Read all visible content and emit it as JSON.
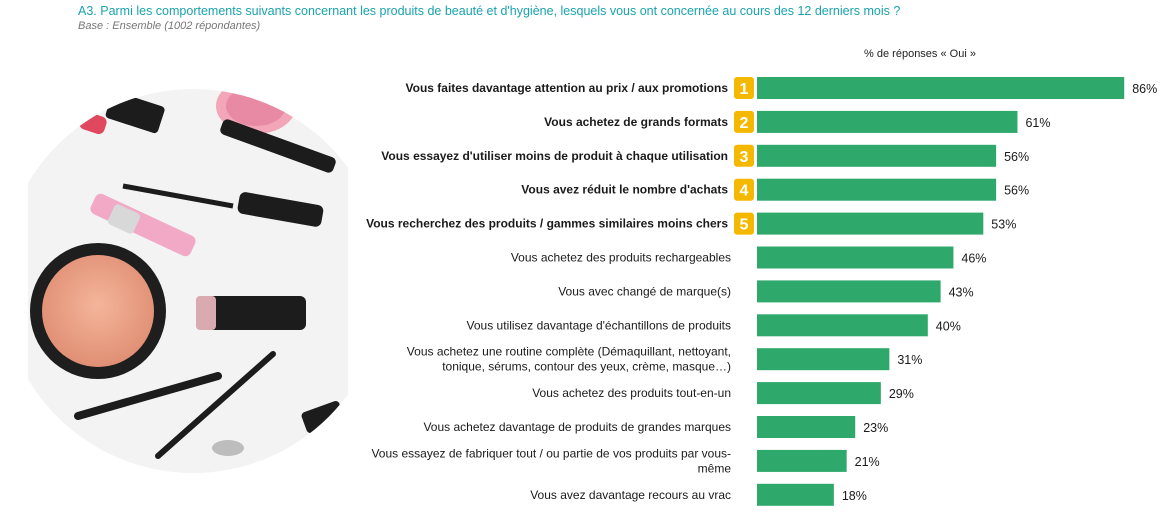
{
  "header": {
    "title": "A3. Parmi les comportements suivants concernant les produits de beauté et d'hygiène, lesquels vous ont concernée au cours des 12 derniers mois ?",
    "subtitle": "Base : Ensemble (1002 répondantes)",
    "measure_label": "% de réponses « Oui »"
  },
  "colors": {
    "bar": "#2ea86b",
    "rank_badge": "#f5b800",
    "title": "#1aa3ad"
  },
  "photo": {
    "description_icon": "makeup-products-photo"
  },
  "chart_data": {
    "type": "bar",
    "orientation": "horizontal",
    "title": "A3. Parmi les comportements suivants concernant les produits de beauté et d'hygiène, lesquels vous ont concernée au cours des 12 derniers mois ?",
    "value_unit": "%",
    "xlim": [
      0,
      100
    ],
    "grid": false,
    "categories": [
      [
        "Vous faites davantage attention au prix / aux promotions"
      ],
      [
        "Vous achetez de grands formats"
      ],
      [
        "Vous essayez d'utiliser moins de produit à chaque utilisation"
      ],
      [
        "Vous avez réduit le nombre d'achats"
      ],
      [
        "Vous recherchez des produits / gammes similaires moins chers"
      ],
      [
        "Vous achetez des produits rechargeables"
      ],
      [
        "Vous avec changé de marque(s)"
      ],
      [
        "Vous utilisez davantage d'échantillons de produits"
      ],
      [
        "Vous achetez une routine complète (Démaquillant, nettoyant,",
        "tonique, sérums, contour des yeux, crème, masque…)"
      ],
      [
        "Vous achetez des produits tout-en-un"
      ],
      [
        "Vous achetez davantage de produits de grandes marques"
      ],
      [
        "Vous essayez de fabriquer tout / ou partie de vos produits par vous-",
        "même"
      ],
      [
        "Vous avez davantage recours au vrac"
      ]
    ],
    "values": [
      86,
      61,
      56,
      56,
      53,
      46,
      43,
      40,
      31,
      29,
      23,
      21,
      18
    ],
    "value_labels": [
      "86%",
      "61%",
      "56%",
      "56%",
      "53%",
      "46%",
      "43%",
      "40%",
      "31%",
      "29%",
      "23%",
      "21%",
      "18%"
    ],
    "ranks": [
      "1",
      "2",
      "3",
      "4",
      "5"
    ]
  }
}
